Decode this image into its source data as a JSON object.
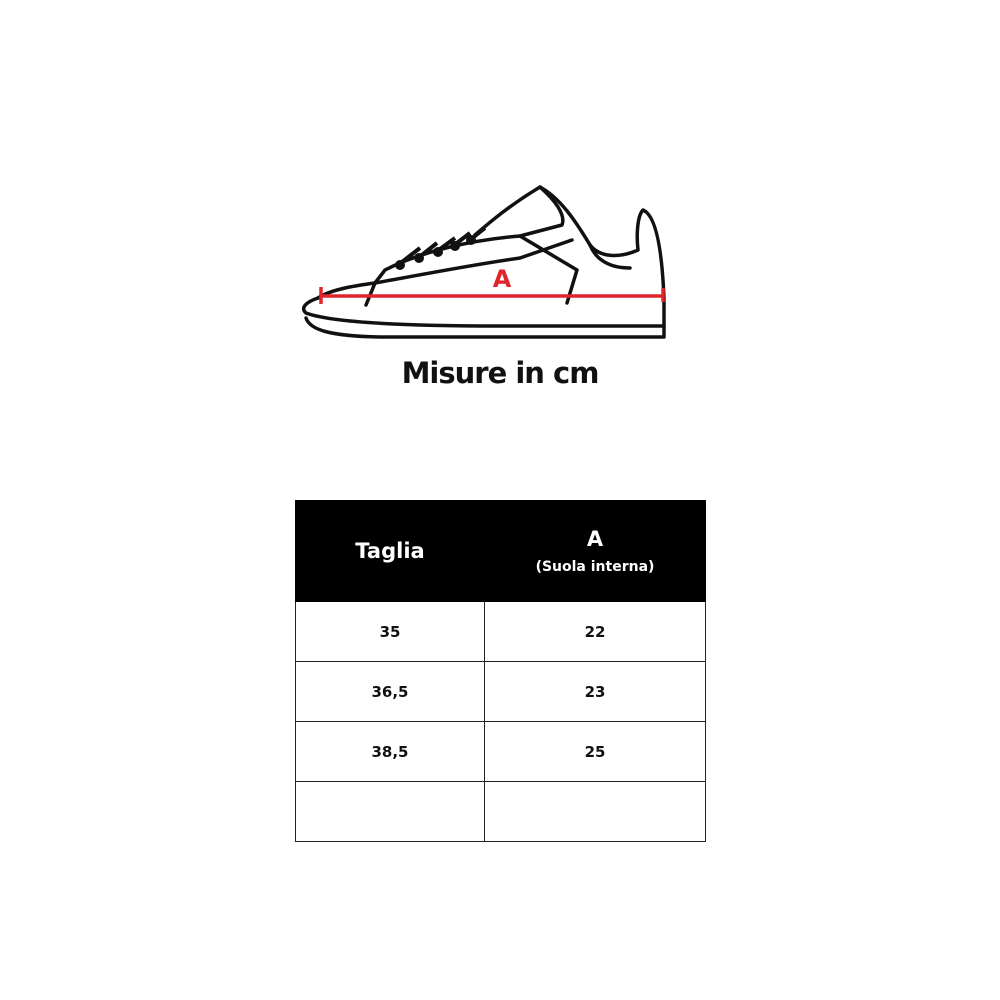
{
  "illustration": {
    "measure_label": "A",
    "measure_color": "#e0262b"
  },
  "title": "Misure in cm",
  "table": {
    "headers": {
      "size": "Taglia",
      "measure": "A",
      "measure_sub": "(Suola interna)"
    },
    "rows": [
      {
        "size": "35",
        "a": "22"
      },
      {
        "size": "36,5",
        "a": "23"
      },
      {
        "size": "38,5",
        "a": "25"
      },
      {
        "size": "",
        "a": ""
      }
    ]
  }
}
